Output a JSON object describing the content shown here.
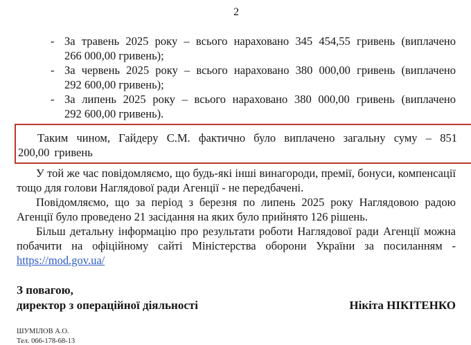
{
  "page": {
    "number": "2",
    "highlight_border_color": "#be372c",
    "link_color": "#2f5bc7"
  },
  "list": {
    "marker": "-",
    "items": [
      "За травень 2025 року – всього нараховано 345 454,55 гривень (виплачено 266 000,00 гривень);",
      "За червень 2025 року – всього нараховано 380 000,00 гривень (виплачено 292 600,00 гривень);",
      "За липень 2025 року – всього нараховано 380 000,00 гривень (виплачено 292 600,00 гривень)."
    ]
  },
  "highlight": {
    "text": "Таким чином, Гайдеру С.М. фактично було виплачено загальну суму – 851 200,00 гривень"
  },
  "paragraphs": {
    "other_rewards": "У той же час повідомляємо, що будь-які інші винагороди, премії, бонуси, компенсації тощо для голови Наглядової ради Агенції - не передбачені.",
    "meetings": "Повідомляємо, що за період з березня по липень 2025 року Наглядовою радою Агенції було проведено 21 засідання на яких було прийнято 126 рішень.",
    "more_info": "Більш детальну інформацію про результати роботи Наглядової ради Агенції можна побачити на офіційному сайті Міністерства оборони України за посиланням -"
  },
  "link": {
    "text": "https://mod.gov.ua/"
  },
  "signature": {
    "closing": "З повагою,",
    "position": "директор з операційної діяльності",
    "name": "Нікіта НІКІТЕНКО"
  },
  "footer": {
    "executor": "ШУМІЛОВ А.О.",
    "phone": "Тел. 066-178-68-13"
  }
}
